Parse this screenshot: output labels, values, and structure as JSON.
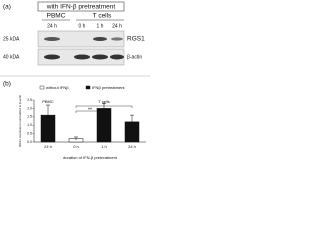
{
  "panel_a": {
    "label": "(a)",
    "header": "with IFN-β pretreatment",
    "groups": [
      "PBMC",
      "T cells"
    ],
    "lanes": [
      "24 h",
      "0 h",
      "1 h",
      "24 h"
    ],
    "markers": [
      "25 kDA",
      "40 kDA"
    ],
    "proteins": [
      "RGS1",
      "β-actin"
    ]
  },
  "chart_data": {
    "type": "bar",
    "label": "(b)",
    "series": [
      {
        "name": "without IFNβ",
        "color": "#ffffff"
      },
      {
        "name": "IFNβ pretreatment",
        "color": "#111111"
      }
    ],
    "categories": [
      "24 h",
      "0 h",
      "1 h",
      "24 h"
    ],
    "bar_series": [
      1,
      0,
      1,
      1
    ],
    "values": [
      1.6,
      0.2,
      2.0,
      1.2
    ],
    "errors": [
      0.6,
      0.1,
      0.3,
      0.4
    ],
    "groups": [
      "PBMC",
      "T cells"
    ],
    "y_label": "RGS1 expression normalized to β-actin",
    "x_label": "duration of IFN-β pretreatment",
    "annotations": [
      "*",
      "**"
    ],
    "ylim": [
      0,
      2.5
    ],
    "yticks": [
      {
        "value": 0,
        "label": "0.0"
      },
      {
        "value": 0.5,
        "label": "0.5"
      },
      {
        "value": 1,
        "label": "1.0"
      },
      {
        "value": 1.5,
        "label": "1.5"
      },
      {
        "value": 2,
        "label": "2.0"
      },
      {
        "value": 2.5,
        "label": "2.5"
      }
    ]
  }
}
